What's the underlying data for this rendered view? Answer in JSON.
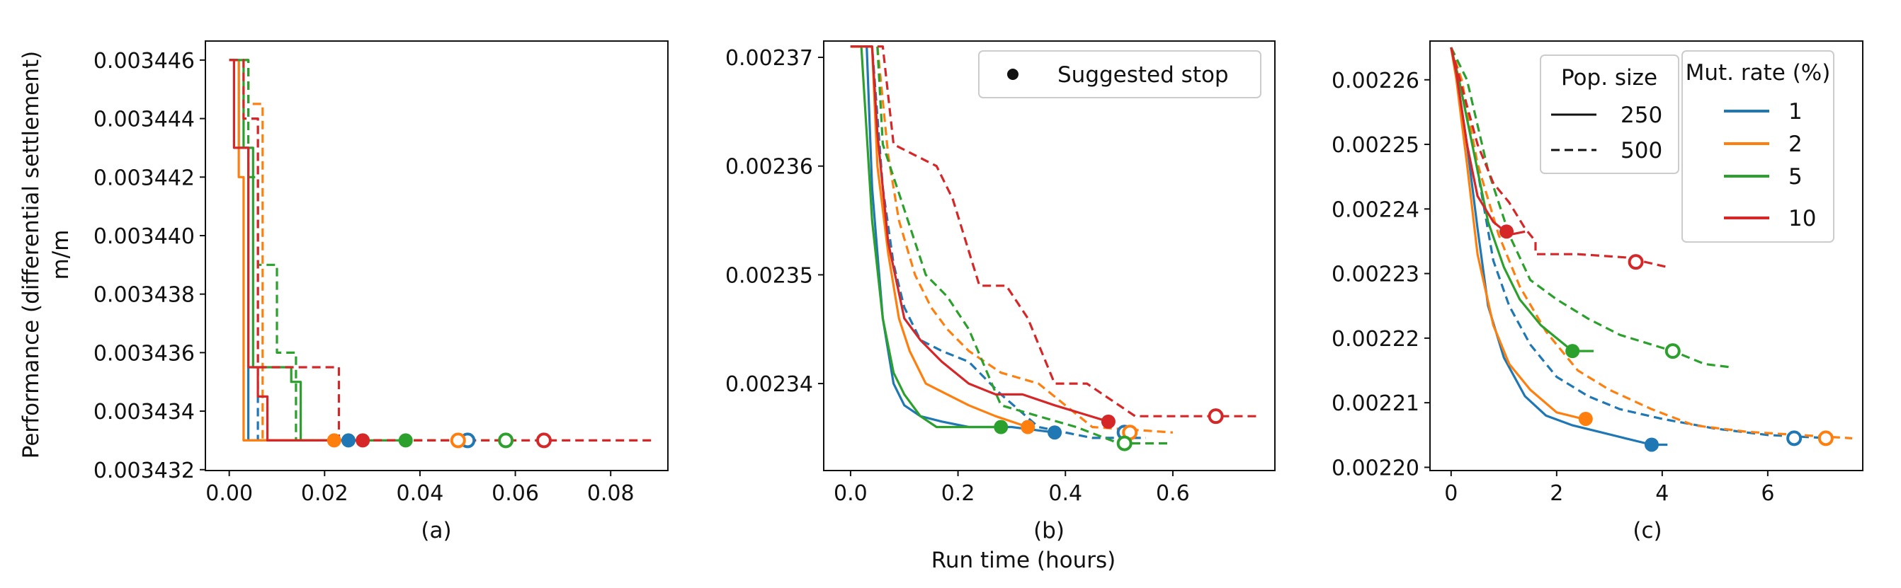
{
  "figure": {
    "ylabel_line1": "Performance (differential settlement)",
    "ylabel_line2": "m/m",
    "xlabel": "Run time (hours)"
  },
  "colors": {
    "1": "#1f77b4",
    "2": "#ff7f0e",
    "5": "#2ca02c",
    "10": "#d62728"
  },
  "legends": {
    "suggested_stop": "Suggested stop",
    "pop_size_title": "Pop. size",
    "pop_size_items": [
      {
        "label": "250",
        "dash": "solid"
      },
      {
        "label": "500",
        "dash": "dashed"
      }
    ],
    "mut_rate_title": "Mut. rate (%)",
    "mut_rate_items": [
      {
        "label": "1",
        "key": "1"
      },
      {
        "label": "2",
        "key": "2"
      },
      {
        "label": "5",
        "key": "5"
      },
      {
        "label": "10",
        "key": "10"
      }
    ]
  },
  "chart_data": [
    {
      "type": "line",
      "panel_label": "(a)",
      "xlim": [
        -0.005,
        0.092
      ],
      "ylim": [
        0.00343197,
        0.00344665
      ],
      "xticks": [
        0.0,
        0.02,
        0.04,
        0.06,
        0.08
      ],
      "xtick_labels": [
        "0.00",
        "0.02",
        "0.04",
        "0.06",
        "0.08"
      ],
      "yticks": [
        0.003432,
        0.003434,
        0.003436,
        0.003438,
        0.00344,
        0.003442,
        0.003444,
        0.003446
      ],
      "ytick_labels": [
        "0.003432",
        "0.003434",
        "0.003436",
        "0.003438",
        "0.003440",
        "0.003442",
        "0.003444",
        "0.003446"
      ],
      "series": [
        {
          "name": "mut 1, pop 250",
          "color_key": "1",
          "dash": "solid",
          "x": [
            0,
            0.002,
            0.002,
            0.004,
            0.004,
            0.025
          ],
          "y": [
            0.003446,
            0.003446,
            0.003443,
            0.003443,
            0.003433,
            0.003433
          ],
          "stop_x": 0.025,
          "stop_y": 0.003433
        },
        {
          "name": "mut 1, pop 500",
          "color_key": "1",
          "dash": "dashed",
          "x": [
            0,
            0.004,
            0.004,
            0.006,
            0.006,
            0.05
          ],
          "y": [
            0.003446,
            0.003446,
            0.003444,
            0.003444,
            0.003433,
            0.003433
          ],
          "stop_x": 0.05,
          "stop_y": 0.003433
        },
        {
          "name": "mut 2, pop 250",
          "color_key": "2",
          "dash": "solid",
          "x": [
            0,
            0.002,
            0.002,
            0.003,
            0.003,
            0.022
          ],
          "y": [
            0.003446,
            0.003446,
            0.003442,
            0.003442,
            0.003433,
            0.003433
          ],
          "stop_x": 0.022,
          "stop_y": 0.003433
        },
        {
          "name": "mut 2, pop 500",
          "color_key": "2",
          "dash": "dashed",
          "x": [
            0,
            0.004,
            0.004,
            0.007,
            0.007,
            0.048
          ],
          "y": [
            0.003446,
            0.003446,
            0.0034445,
            0.0034445,
            0.003433,
            0.003433
          ],
          "stop_x": 0.048,
          "stop_y": 0.003433
        },
        {
          "name": "mut 5, pop 250",
          "color_key": "5",
          "dash": "solid",
          "x": [
            0,
            0.003,
            0.003,
            0.005,
            0.005,
            0.013,
            0.013,
            0.015,
            0.015,
            0.037
          ],
          "y": [
            0.003446,
            0.003446,
            0.003443,
            0.003443,
            0.0034355,
            0.0034355,
            0.003435,
            0.003435,
            0.003433,
            0.003433
          ],
          "stop_x": 0.037,
          "stop_y": 0.003433
        },
        {
          "name": "mut 5, pop 500",
          "color_key": "5",
          "dash": "dashed",
          "x": [
            0,
            0.004,
            0.004,
            0.006,
            0.006,
            0.01,
            0.01,
            0.014,
            0.014,
            0.058
          ],
          "y": [
            0.003446,
            0.003446,
            0.003442,
            0.003442,
            0.003439,
            0.003439,
            0.003436,
            0.003436,
            0.003433,
            0.003433
          ],
          "stop_x": 0.058,
          "stop_y": 0.003433
        },
        {
          "name": "mut 10, pop 250",
          "color_key": "10",
          "dash": "solid",
          "x": [
            0,
            0.001,
            0.001,
            0.004,
            0.004,
            0.006,
            0.006,
            0.008,
            0.008,
            0.028
          ],
          "y": [
            0.003446,
            0.003446,
            0.003443,
            0.003443,
            0.0034355,
            0.0034355,
            0.0034345,
            0.0034345,
            0.003433,
            0.003433
          ],
          "stop_x": 0.028,
          "stop_y": 0.003433
        },
        {
          "name": "mut 10, pop 500",
          "color_key": "10",
          "dash": "dashed",
          "x": [
            0,
            0.003,
            0.003,
            0.006,
            0.006,
            0.02,
            0.02,
            0.023,
            0.023,
            0.066,
            0.066,
            0.089
          ],
          "y": [
            0.003446,
            0.003446,
            0.003444,
            0.003444,
            0.0034355,
            0.0034355,
            0.0034355,
            0.0034355,
            0.003433,
            0.003433,
            0.003433,
            0.003433
          ],
          "stop_x": 0.066,
          "stop_y": 0.003433
        }
      ]
    },
    {
      "type": "line",
      "panel_label": "(b)",
      "xlim": [
        -0.05,
        0.79
      ],
      "ylim": [
        0.002332,
        0.0023715
      ],
      "xticks": [
        0.0,
        0.2,
        0.4,
        0.6
      ],
      "xtick_labels": [
        "0.0",
        "0.2",
        "0.4",
        "0.6"
      ],
      "yticks": [
        0.00234,
        0.00235,
        0.00236,
        0.00237
      ],
      "ytick_labels": [
        "0.00234",
        "0.00235",
        "0.00236",
        "0.00237"
      ],
      "series": [
        {
          "name": "mut 1, pop 250",
          "color_key": "1",
          "dash": "solid",
          "x": [
            0,
            0.03,
            0.04,
            0.05,
            0.06,
            0.08,
            0.1,
            0.13,
            0.17,
            0.22,
            0.3,
            0.38
          ],
          "y": [
            0.002371,
            0.002371,
            0.002358,
            0.002352,
            0.002346,
            0.00234,
            0.002338,
            0.002337,
            0.0023365,
            0.002336,
            0.002336,
            0.0023355
          ],
          "stop_x": 0.38,
          "stop_y": 0.0023355
        },
        {
          "name": "mut 1, pop 500",
          "color_key": "1",
          "dash": "dashed",
          "x": [
            0,
            0.04,
            0.06,
            0.08,
            0.1,
            0.13,
            0.17,
            0.22,
            0.28,
            0.35,
            0.45,
            0.55
          ],
          "y": [
            0.002371,
            0.002371,
            0.002358,
            0.002351,
            0.002347,
            0.002344,
            0.002343,
            0.002342,
            0.002339,
            0.002336,
            0.002335,
            0.002335
          ],
          "stop_x": 0.51,
          "stop_y": 0.0023355
        },
        {
          "name": "mut 2, pop 250",
          "color_key": "2",
          "dash": "solid",
          "x": [
            0,
            0.04,
            0.05,
            0.07,
            0.09,
            0.11,
            0.14,
            0.18,
            0.22,
            0.27,
            0.33
          ],
          "y": [
            0.002371,
            0.002371,
            0.00236,
            0.002352,
            0.002346,
            0.002343,
            0.00234,
            0.002339,
            0.002338,
            0.002337,
            0.002336
          ],
          "stop_x": 0.33,
          "stop_y": 0.002336
        },
        {
          "name": "mut 2, pop 500",
          "color_key": "2",
          "dash": "dashed",
          "x": [
            0,
            0.05,
            0.07,
            0.09,
            0.12,
            0.15,
            0.18,
            0.22,
            0.28,
            0.35,
            0.45,
            0.6
          ],
          "y": [
            0.002371,
            0.002371,
            0.002361,
            0.002355,
            0.00235,
            0.002347,
            0.002345,
            0.002343,
            0.002341,
            0.00234,
            0.002336,
            0.0023355
          ],
          "stop_x": 0.52,
          "stop_y": 0.0023355
        },
        {
          "name": "mut 5, pop 250",
          "color_key": "5",
          "dash": "solid",
          "x": [
            0,
            0.02,
            0.04,
            0.06,
            0.08,
            0.1,
            0.13,
            0.16,
            0.2,
            0.24,
            0.28
          ],
          "y": [
            0.002371,
            0.002371,
            0.002355,
            0.002346,
            0.002341,
            0.002339,
            0.002337,
            0.002336,
            0.002336,
            0.002336,
            0.002336
          ],
          "stop_x": 0.28,
          "stop_y": 0.002336
        },
        {
          "name": "mut 5, pop 500",
          "color_key": "5",
          "dash": "dashed",
          "x": [
            0,
            0.05,
            0.06,
            0.1,
            0.14,
            0.18,
            0.22,
            0.28,
            0.35,
            0.42,
            0.5,
            0.59
          ],
          "y": [
            0.002371,
            0.002371,
            0.002362,
            0.002356,
            0.00235,
            0.002348,
            0.002345,
            0.002338,
            0.002337,
            0.002336,
            0.0023345,
            0.0023345
          ],
          "stop_x": 0.51,
          "stop_y": 0.0023345
        },
        {
          "name": "mut 10, pop 250",
          "color_key": "10",
          "dash": "solid",
          "x": [
            0,
            0.04,
            0.05,
            0.07,
            0.1,
            0.13,
            0.17,
            0.22,
            0.27,
            0.32,
            0.38,
            0.48
          ],
          "y": [
            0.002371,
            0.002371,
            0.002363,
            0.002353,
            0.002346,
            0.002344,
            0.002342,
            0.00234,
            0.002339,
            0.002339,
            0.002338,
            0.0023365
          ],
          "stop_x": 0.48,
          "stop_y": 0.0023365
        },
        {
          "name": "mut 10, pop 500",
          "color_key": "10",
          "dash": "dashed",
          "x": [
            0,
            0.06,
            0.08,
            0.12,
            0.16,
            0.19,
            0.24,
            0.29,
            0.33,
            0.38,
            0.44,
            0.53,
            0.68,
            0.76
          ],
          "y": [
            0.002371,
            0.002371,
            0.002362,
            0.002361,
            0.00236,
            0.002357,
            0.002349,
            0.002349,
            0.002346,
            0.00234,
            0.00234,
            0.002337,
            0.002337,
            0.002337
          ],
          "stop_x": 0.68,
          "stop_y": 0.002337
        }
      ]
    },
    {
      "type": "line",
      "panel_label": "(c)",
      "xlim": [
        -0.4,
        7.8
      ],
      "ylim": [
        0.0021995,
        0.002266
      ],
      "xticks": [
        0,
        2,
        4,
        6
      ],
      "xtick_labels": [
        "0",
        "2",
        "4",
        "6"
      ],
      "yticks": [
        0.0022,
        0.00221,
        0.00222,
        0.00223,
        0.00224,
        0.00225,
        0.00226
      ],
      "ytick_labels": [
        "0.00220",
        "0.00221",
        "0.00222",
        "0.00223",
        "0.00224",
        "0.00225",
        "0.00226"
      ],
      "series": [
        {
          "name": "mut 1, pop 250",
          "color_key": "1",
          "dash": "solid",
          "x": [
            0,
            0.1,
            0.3,
            0.5,
            0.7,
            1.0,
            1.4,
            1.8,
            2.3,
            2.8,
            3.3,
            3.8,
            4.1
          ],
          "y": [
            0.002265,
            0.002261,
            0.00225,
            0.002237,
            0.002225,
            0.002217,
            0.002211,
            0.002208,
            0.0022065,
            0.0022055,
            0.0022045,
            0.0022035,
            0.0022035
          ],
          "stop_x": 3.8,
          "stop_y": 0.0022035
        },
        {
          "name": "mut 1, pop 500",
          "color_key": "1",
          "dash": "dashed",
          "x": [
            0,
            0.2,
            0.5,
            0.8,
            1.1,
            1.5,
            2.0,
            2.6,
            3.2,
            4.0,
            5.0,
            6.0,
            7.2
          ],
          "y": [
            0.002265,
            0.002259,
            0.002246,
            0.002232,
            0.002225,
            0.002219,
            0.002214,
            0.002211,
            0.002209,
            0.0022075,
            0.002206,
            0.002205,
            0.0022045
          ],
          "stop_x": 6.5,
          "stop_y": 0.0022045
        },
        {
          "name": "mut 2, pop 250",
          "color_key": "2",
          "dash": "solid",
          "x": [
            0,
            0.1,
            0.3,
            0.5,
            0.8,
            1.1,
            1.5,
            2.0,
            2.5
          ],
          "y": [
            0.002265,
            0.00226,
            0.002247,
            0.002233,
            0.002222,
            0.002216,
            0.002212,
            0.0022085,
            0.0022075
          ],
          "stop_x": 2.55,
          "stop_y": 0.0022075
        },
        {
          "name": "mut 2, pop 500",
          "color_key": "2",
          "dash": "dashed",
          "x": [
            0,
            0.2,
            0.5,
            0.9,
            1.3,
            1.8,
            2.4,
            3.0,
            3.8,
            4.6,
            5.6,
            6.6,
            7.6
          ],
          "y": [
            0.002265,
            0.00226,
            0.002247,
            0.002236,
            0.002228,
            0.002221,
            0.002215,
            0.002212,
            0.002209,
            0.0022065,
            0.0022055,
            0.002205,
            0.0022045
          ],
          "stop_x": 7.1,
          "stop_y": 0.0022045
        },
        {
          "name": "mut 5, pop 250",
          "color_key": "5",
          "dash": "solid",
          "x": [
            0,
            0.15,
            0.4,
            0.7,
            1.0,
            1.3,
            1.7,
            2.0,
            2.3,
            2.7
          ],
          "y": [
            0.002265,
            0.00226,
            0.00225,
            0.002238,
            0.002231,
            0.002226,
            0.002222,
            0.00222,
            0.002218,
            0.002218
          ],
          "stop_x": 2.3,
          "stop_y": 0.002218
        },
        {
          "name": "mut 5, pop 500",
          "color_key": "5",
          "dash": "dashed",
          "x": [
            0,
            0.3,
            0.7,
            1.1,
            1.5,
            2.0,
            2.6,
            3.2,
            3.8,
            4.2,
            4.8,
            5.3
          ],
          "y": [
            0.002265,
            0.00226,
            0.002246,
            0.002236,
            0.002229,
            0.002226,
            0.002223,
            0.0022205,
            0.002219,
            0.002218,
            0.002216,
            0.0022155
          ],
          "stop_x": 4.2,
          "stop_y": 0.002218
        },
        {
          "name": "mut 10, pop 250",
          "color_key": "10",
          "dash": "solid",
          "x": [
            0,
            0.1,
            0.3,
            0.5,
            0.8,
            1.1,
            1.4
          ],
          "y": [
            0.002265,
            0.002261,
            0.00225,
            0.002242,
            0.002238,
            0.002236,
            0.0022365
          ],
          "stop_x": 1.05,
          "stop_y": 0.0022365
        },
        {
          "name": "mut 10, pop 500",
          "color_key": "10",
          "dash": "dashed",
          "x": [
            0,
            0.2,
            0.5,
            0.8,
            1.1,
            1.4,
            1.6,
            1.6,
            2.4,
            3.3,
            4.1
          ],
          "y": [
            0.002265,
            0.002259,
            0.00225,
            0.002244,
            0.002241,
            0.002237,
            0.002235,
            0.002233,
            0.002233,
            0.0022325,
            0.002231
          ],
          "stop_x": 3.5,
          "stop_y": 0.0022318
        }
      ]
    }
  ]
}
